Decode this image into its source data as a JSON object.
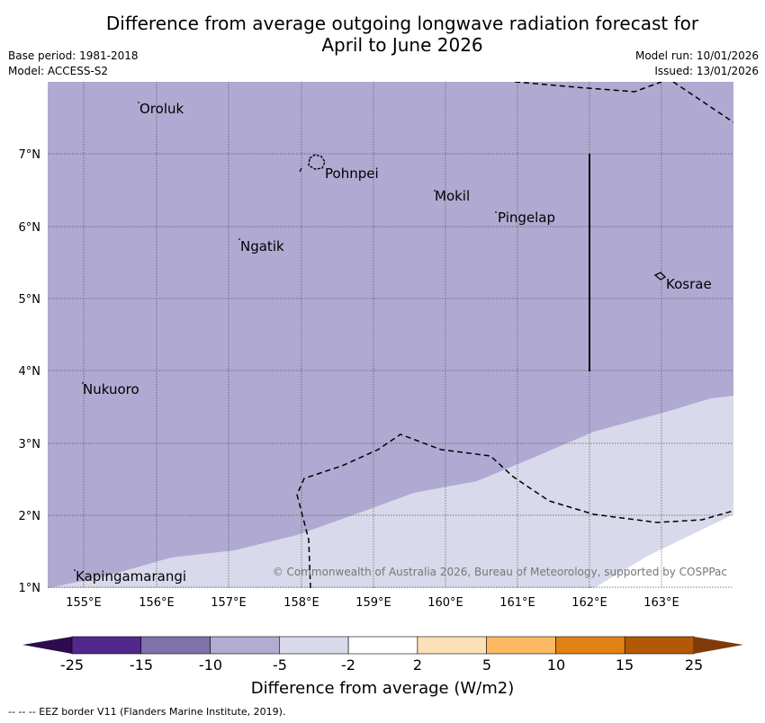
{
  "title_line1": "Difference from average outgoing longwave radiation forecast for",
  "title_line2": "April to June 2026",
  "base_period": "Base period: 1981-2018",
  "model": "Model: ACCESS-S2",
  "model_run": "Model run: 10/01/2026",
  "issued": "Issued: 13/01/2026",
  "copyright": "© Commonwealth of Australia 2026, Bureau of Meteorology, supported by COSPPac",
  "lon_labels": [
    "155°E",
    "156°E",
    "157°E",
    "158°E",
    "159°E",
    "160°E",
    "161°E",
    "162°E",
    "163°E"
  ],
  "lat_labels": [
    "7°N",
    "6°N",
    "5°N",
    "4°N",
    "3°N",
    "2°N",
    "1°N"
  ],
  "places": [
    "Oroluk",
    "Pohnpei",
    "Mokil",
    "Pingelap",
    "Ngatik",
    "Kosrae",
    "Nukuoro",
    "Kapingamarangi"
  ],
  "colorbar": {
    "ticks": [
      "-25",
      "-15",
      "-10",
      "-5",
      "-2",
      "2",
      "5",
      "10",
      "15",
      "25"
    ],
    "colors": [
      "#2e0a4f",
      "#54278f",
      "#8073ac",
      "#b2abd2",
      "#d8daeb",
      "#ffffff",
      "#fee0b6",
      "#fdb863",
      "#e08214",
      "#b35806",
      "#7f3b08"
    ],
    "label": "Difference from average (W/m2)"
  },
  "footer": "--  --  -- EEZ border V11 (Flanders Marine Institute, 2019)."
}
